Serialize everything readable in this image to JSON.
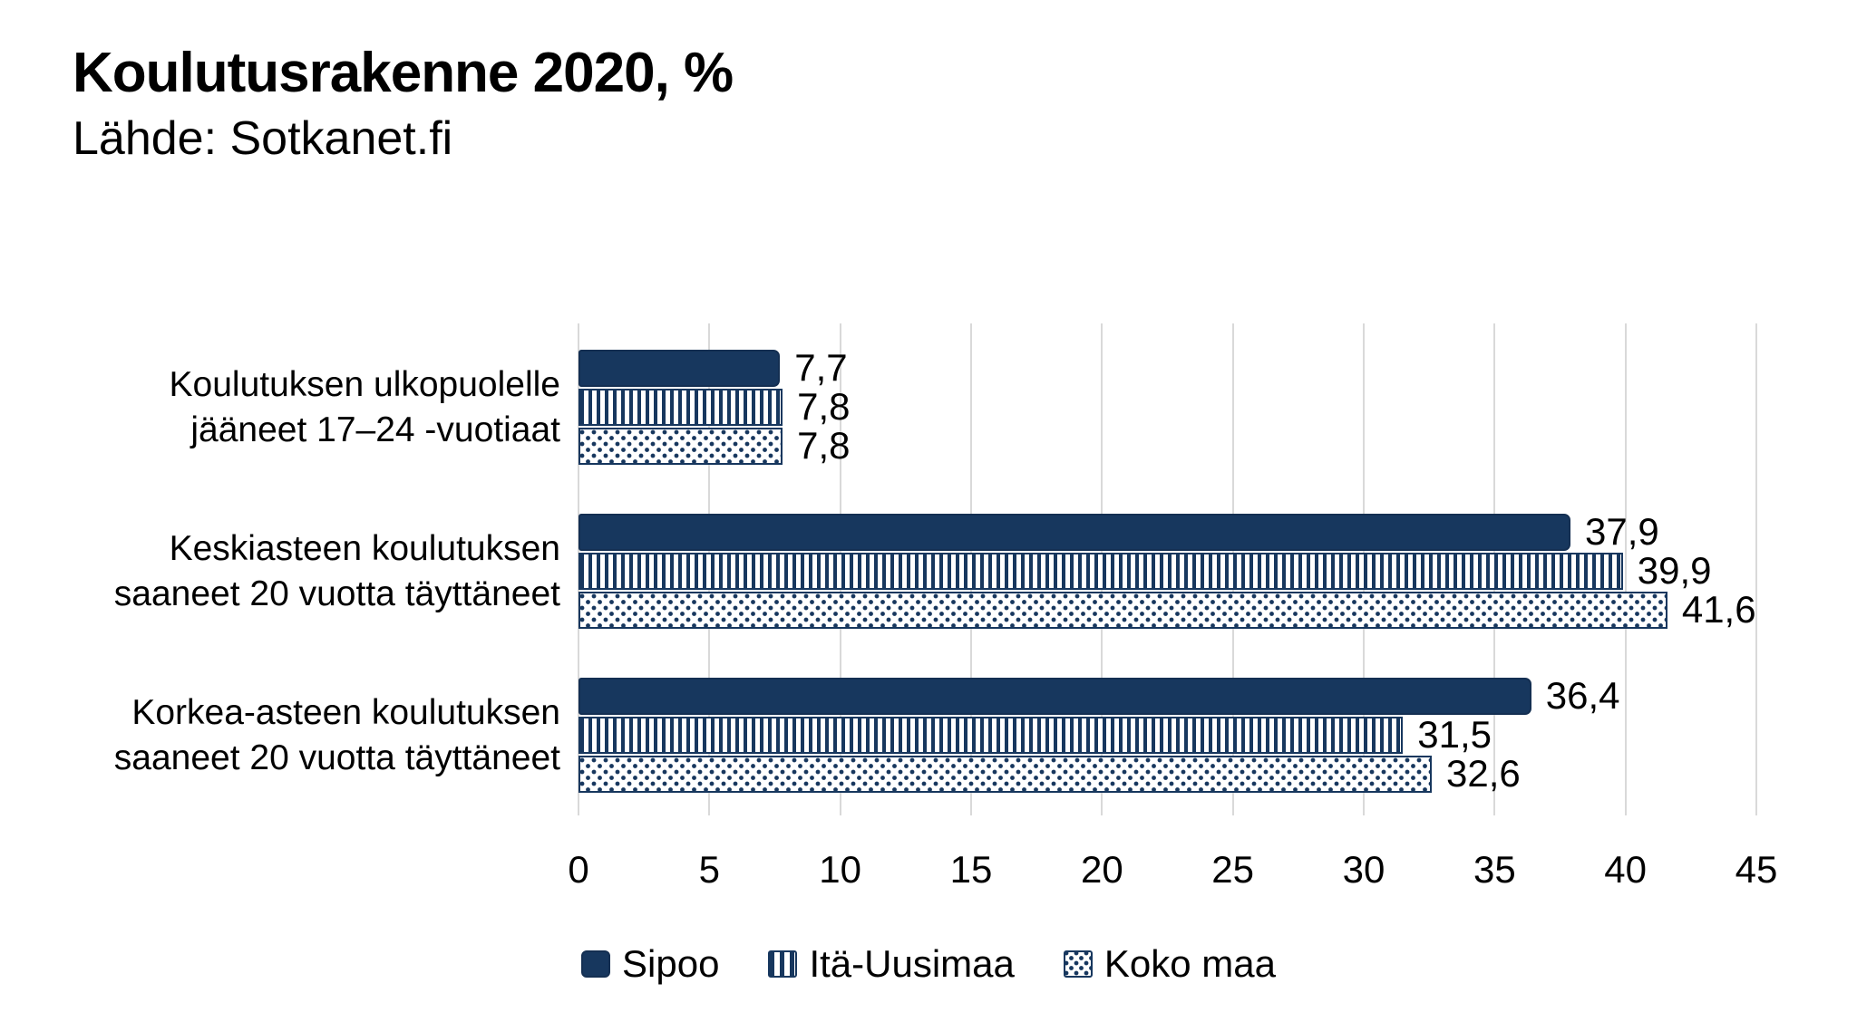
{
  "header": {
    "title": "Koulutusrakenne 2020, %",
    "source": "Lähde: Sotkanet.fi"
  },
  "chart_data": {
    "type": "bar",
    "orientation": "horizontal",
    "title": "Koulutusrakenne 2020, %",
    "subtitle": "Lähde: Sotkanet.fi",
    "categories": [
      {
        "line1": "Koulutuksen ulkopuolelle",
        "line2": "jääneet 17–24 -vuotiaat"
      },
      {
        "line1": "Keskiasteen koulutuksen",
        "line2": "saaneet 20 vuotta täyttäneet"
      },
      {
        "line1": "Korkea-asteen koulutuksen",
        "line2": "saaneet 20 vuotta täyttäneet"
      }
    ],
    "series": [
      {
        "name": "Sipoo",
        "pattern": "solid",
        "values": [
          7.7,
          37.9,
          36.4
        ],
        "value_labels": [
          "7,7",
          "37,9",
          "36,4"
        ]
      },
      {
        "name": "Itä-Uusimaa",
        "pattern": "vstripes",
        "values": [
          7.8,
          39.9,
          31.5
        ],
        "value_labels": [
          "7,8",
          "39,9",
          "31,5"
        ]
      },
      {
        "name": "Koko maa",
        "pattern": "dots",
        "values": [
          7.8,
          41.6,
          32.6
        ],
        "value_labels": [
          "7,8",
          "41,6",
          "32,6"
        ]
      }
    ],
    "xlim": [
      0,
      45
    ],
    "xticks": [
      "0",
      "5",
      "10",
      "15",
      "20",
      "25",
      "30",
      "35",
      "40",
      "45"
    ],
    "grid": "vertical-only",
    "legend_position": "bottom-center",
    "colors": {
      "accent": "#17375e",
      "grid": "#d9d9d9",
      "text": "#000000",
      "background": "#ffffff"
    }
  }
}
